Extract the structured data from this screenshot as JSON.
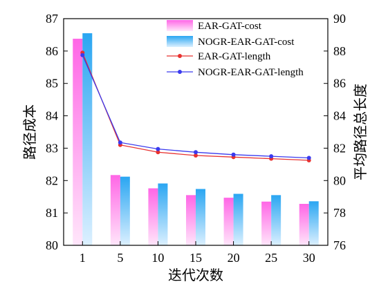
{
  "chart_data": {
    "type": "bar",
    "categories": [
      "1",
      "5",
      "10",
      "15",
      "20",
      "25",
      "30"
    ],
    "xlabel": "迭代次数",
    "ylabel": "路径成本",
    "y2label": "平均路径总长度",
    "ylim": [
      80,
      87
    ],
    "y2lim": [
      76,
      90
    ],
    "yticks": [
      "80",
      "81",
      "82",
      "83",
      "84",
      "85",
      "86",
      "87"
    ],
    "y2ticks": [
      "76",
      "78",
      "80",
      "82",
      "84",
      "86",
      "88",
      "90"
    ],
    "legend_position": "top-right",
    "bar_series": [
      {
        "name": "EAR-GAT-cost",
        "axis": "left",
        "color": "#ff66e6",
        "values": [
          86.38,
          82.17,
          81.76,
          81.55,
          81.47,
          81.35,
          81.28
        ]
      },
      {
        "name": "NOGR-EAR-GAT-cost",
        "axis": "left",
        "color": "#33aaf0",
        "values": [
          86.55,
          82.12,
          81.91,
          81.74,
          81.59,
          81.55,
          81.36
        ]
      }
    ],
    "line_series": [
      {
        "name": "EAR-GAT-length",
        "axis": "right",
        "color": "#e8312f",
        "values": [
          87.9,
          82.2,
          81.75,
          81.55,
          81.45,
          81.35,
          81.25
        ]
      },
      {
        "name": "NOGR-EAR-GAT-length",
        "axis": "right",
        "color": "#3a3aee",
        "values": [
          87.75,
          82.35,
          81.95,
          81.75,
          81.6,
          81.5,
          81.4
        ]
      }
    ]
  }
}
